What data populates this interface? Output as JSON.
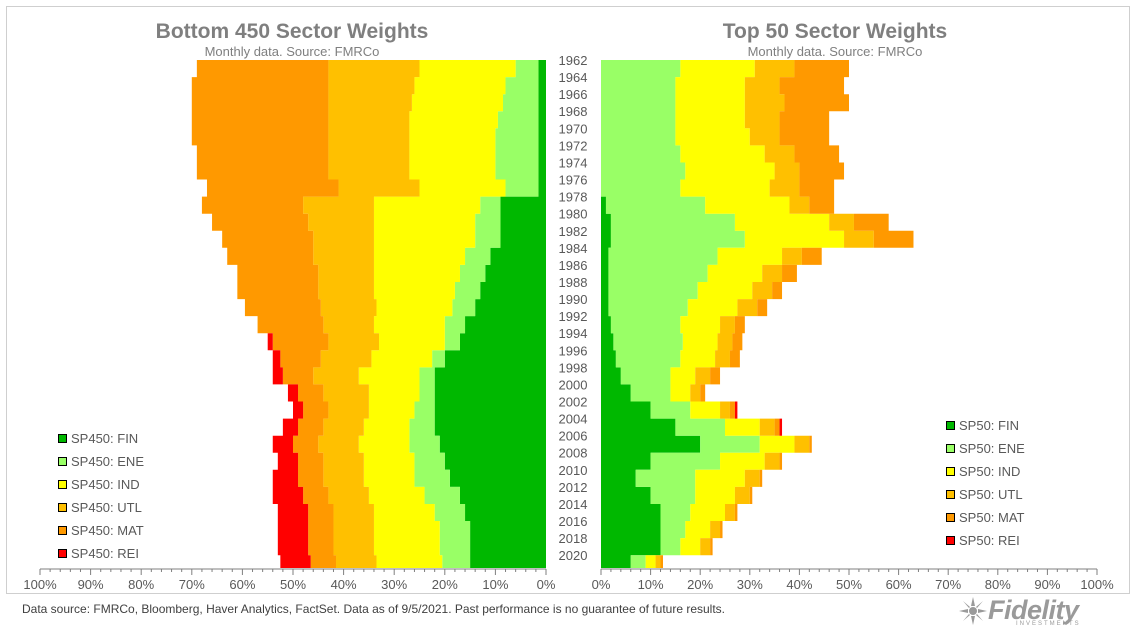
{
  "chart_data": [
    {
      "type": "area",
      "orientation": "horizontal",
      "stacking": "stacked",
      "direction": "right-to-left",
      "title": "Bottom 450 Sector Weights",
      "subtitle": "Monthly data.  Source: FMRCo",
      "xlim": [
        0,
        100
      ],
      "x_ticks": [
        "100%",
        "90%",
        "80%",
        "70%",
        "60%",
        "50%",
        "40%",
        "30%",
        "20%",
        "10%",
        "0%"
      ],
      "legend_position": "lower-left",
      "series_order": [
        "FIN",
        "ENE",
        "IND",
        "UTL",
        "MAT",
        "REI"
      ],
      "series": [
        {
          "name": "SP450: FIN",
          "color": "#00b800",
          "values": [
            1.5,
            1.5,
            1.5,
            1.5,
            1.5,
            1.5,
            1.5,
            1.5,
            9,
            9,
            9,
            11,
            12,
            13,
            14,
            16,
            17,
            20,
            22,
            22,
            22,
            22,
            21,
            20,
            19,
            17,
            16,
            15,
            15,
            15
          ]
        },
        {
          "name": "SP450: ENE",
          "color": "#99ff66",
          "values": [
            4.5,
            6.5,
            7,
            8,
            8.5,
            8.5,
            8.5,
            6.5,
            4,
            5,
            5,
            5,
            5,
            5,
            4.5,
            4,
            3,
            2.5,
            3,
            3,
            4,
            5,
            6,
            6,
            7,
            7,
            6,
            6,
            6,
            5.5
          ]
        },
        {
          "name": "SP450: IND",
          "color": "#ffff00",
          "values": [
            19,
            18,
            18,
            17.5,
            17,
            17,
            17,
            17,
            21,
            20,
            20,
            18,
            17,
            16,
            15,
            14,
            13,
            12,
            12,
            10,
            9,
            9,
            10,
            10,
            10,
            11,
            12,
            13,
            13,
            13
          ]
        },
        {
          "name": "SP450: UTL",
          "color": "#ffc000",
          "values": [
            18,
            17,
            16.5,
            16,
            16,
            16,
            16,
            16,
            14,
            13,
            12,
            12,
            11,
            11,
            11,
            10,
            10,
            10,
            9,
            9,
            8,
            8,
            8,
            8,
            8,
            8,
            8,
            8,
            8,
            8
          ]
        },
        {
          "name": "SP450: MAT",
          "color": "#ff9900",
          "values": [
            26,
            27,
            27,
            27,
            27,
            26,
            26,
            26,
            20,
            19,
            18,
            17,
            16,
            16,
            15,
            13,
            11,
            8,
            6,
            5,
            5,
            5,
            5,
            5,
            5,
            5,
            5,
            5,
            5,
            5
          ]
        },
        {
          "name": "SP450: REI",
          "color": "#ff0000",
          "values": [
            0,
            0,
            0,
            0,
            0,
            0,
            0,
            0,
            0,
            0,
            0,
            0,
            0,
            0,
            0,
            0,
            1,
            1.5,
            2,
            2,
            2,
            3,
            4,
            4,
            5,
            6,
            6,
            6,
            6,
            6
          ]
        }
      ],
      "years_axis": {
        "start": 1962,
        "end": 2021.5,
        "step": 2,
        "labels": [
          "1962",
          "1964",
          "1966",
          "1968",
          "1970",
          "1972",
          "1974",
          "1976",
          "1978",
          "1980",
          "1982",
          "1984",
          "1986",
          "1988",
          "1990",
          "1992",
          "1994",
          "1996",
          "1998",
          "2000",
          "2002",
          "2004",
          "2006",
          "2008",
          "2010",
          "2012",
          "2014",
          "2016",
          "2018",
          "2020"
        ]
      }
    },
    {
      "type": "area",
      "orientation": "horizontal",
      "stacking": "stacked",
      "direction": "left-to-right",
      "title": "Top 50 Sector Weights",
      "subtitle": "Monthly data.  Source: FMRCo",
      "xlim": [
        0,
        100
      ],
      "x_ticks": [
        "0%",
        "10%",
        "20%",
        "30%",
        "40%",
        "50%",
        "60%",
        "70%",
        "80%",
        "90%",
        "100%"
      ],
      "legend_position": "lower-right",
      "series_order": [
        "FIN",
        "ENE",
        "IND",
        "UTL",
        "MAT",
        "REI"
      ],
      "series": [
        {
          "name": "SP50: FIN",
          "color": "#00b800",
          "values": [
            0,
            0,
            0,
            0,
            0,
            0,
            0,
            0,
            1,
            2,
            2,
            1.5,
            1.5,
            1.5,
            1.5,
            2,
            2.5,
            3,
            4,
            6,
            10,
            15,
            20,
            10,
            7,
            10,
            12,
            12,
            12,
            6
          ]
        },
        {
          "name": "SP50: ENE",
          "color": "#99ff66",
          "values": [
            16,
            15,
            15,
            15,
            15,
            16,
            17,
            16,
            20,
            25,
            27,
            22,
            20,
            18,
            16,
            14,
            14,
            13,
            10,
            8,
            8,
            10,
            12,
            14,
            12,
            9,
            6,
            5,
            4,
            3
          ]
        },
        {
          "name": "SP50: IND",
          "color": "#ffff00",
          "values": [
            15,
            14,
            14,
            14,
            15,
            17,
            18,
            18,
            17,
            19,
            20,
            13,
            11,
            11,
            10,
            8,
            7,
            7,
            5,
            4,
            6,
            7,
            7,
            9,
            10,
            8,
            7,
            5,
            4,
            2
          ]
        },
        {
          "name": "SP50: UTL",
          "color": "#ffc000",
          "values": [
            8,
            7,
            8,
            7,
            6,
            6,
            5,
            6,
            4,
            5,
            6,
            4,
            4,
            4,
            4,
            3,
            3,
            3,
            3,
            2,
            2,
            3,
            3,
            3,
            3,
            3,
            2,
            2,
            2,
            1
          ]
        },
        {
          "name": "SP50: MAT",
          "color": "#ff9900",
          "values": [
            11,
            13,
            13,
            10,
            10,
            9,
            9,
            7,
            5,
            7,
            8,
            4,
            3,
            2,
            2,
            2,
            2,
            2,
            2,
            1,
            1,
            1,
            0.5,
            0.5,
            0.5,
            0.5,
            0.5,
            0.5,
            0.5,
            0.5
          ]
        },
        {
          "name": "SP50: REI",
          "color": "#ff0000",
          "values": [
            0,
            0,
            0,
            0,
            0,
            0,
            0,
            0,
            0,
            0,
            0,
            0,
            0,
            0,
            0,
            0,
            0,
            0,
            0,
            0,
            0.5,
            0.5,
            0,
            0,
            0,
            0,
            0,
            0,
            0,
            0
          ]
        }
      ]
    }
  ],
  "footer": "Data source: FMRCo, Bloomberg, Haver Analytics, FactSet. Data as of 9/5/2021. Past performance is no guarantee of future results.",
  "logo": {
    "text": "Fidelity",
    "sub": "INVESTMENTS"
  }
}
